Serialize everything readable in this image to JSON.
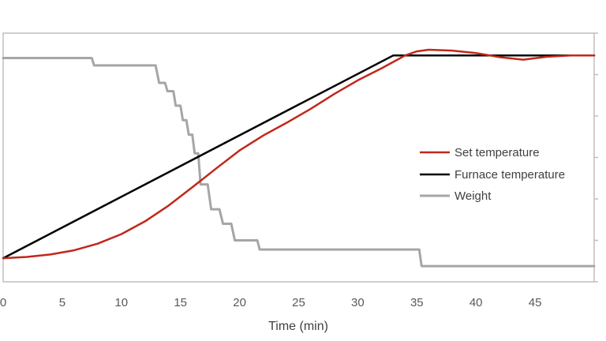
{
  "chart_data": {
    "type": "line",
    "title": "",
    "xlabel": "Time (min)",
    "ylabel": "",
    "xlim": [
      0,
      50
    ],
    "ylim": [
      0,
      6
    ],
    "x_ticks": [
      0,
      5,
      10,
      15,
      20,
      25,
      30,
      35,
      40,
      45
    ],
    "x_tick_labels": [
      "0",
      "5",
      "10",
      "15",
      "20",
      "25",
      "30",
      "35",
      "40",
      "45"
    ],
    "right_axis_ticks": [
      0,
      1,
      2,
      3,
      4,
      5,
      6
    ],
    "grid": false,
    "legend_position": "center-right",
    "series": [
      {
        "name": "Set temperature",
        "color": "#c0281c",
        "x": [
          0,
          2,
          4,
          6,
          8,
          10,
          12,
          14,
          16,
          18,
          20,
          22,
          24,
          26,
          28,
          30,
          32,
          34,
          35,
          36,
          38,
          40,
          42,
          44,
          46,
          48,
          50
        ],
        "y": [
          0.57,
          0.6,
          0.66,
          0.76,
          0.92,
          1.15,
          1.46,
          1.84,
          2.28,
          2.73,
          3.17,
          3.53,
          3.84,
          4.17,
          4.53,
          4.86,
          5.15,
          5.46,
          5.56,
          5.6,
          5.58,
          5.52,
          5.42,
          5.36,
          5.43,
          5.46,
          5.46
        ]
      },
      {
        "name": "Furnace temperature",
        "color": "#000000",
        "x": [
          0,
          33,
          50
        ],
        "y": [
          0.57,
          5.46,
          5.46
        ]
      },
      {
        "name": "Weight",
        "color": "#a6a6a6",
        "x": [
          0,
          7.5,
          7.7,
          12.9,
          13.2,
          13.7,
          13.9,
          14.4,
          14.6,
          15.0,
          15.2,
          15.5,
          15.7,
          16.0,
          16.2,
          16.5,
          16.7,
          17.3,
          17.6,
          18.3,
          18.6,
          19.3,
          19.6,
          21.5,
          21.7,
          35.2,
          35.4,
          50
        ],
        "y": [
          5.4,
          5.4,
          5.22,
          5.22,
          4.8,
          4.8,
          4.6,
          4.6,
          4.25,
          4.25,
          3.9,
          3.9,
          3.55,
          3.55,
          3.1,
          3.1,
          2.35,
          2.35,
          1.75,
          1.75,
          1.4,
          1.4,
          1.0,
          1.0,
          0.78,
          0.78,
          0.38,
          0.38
        ]
      }
    ]
  }
}
